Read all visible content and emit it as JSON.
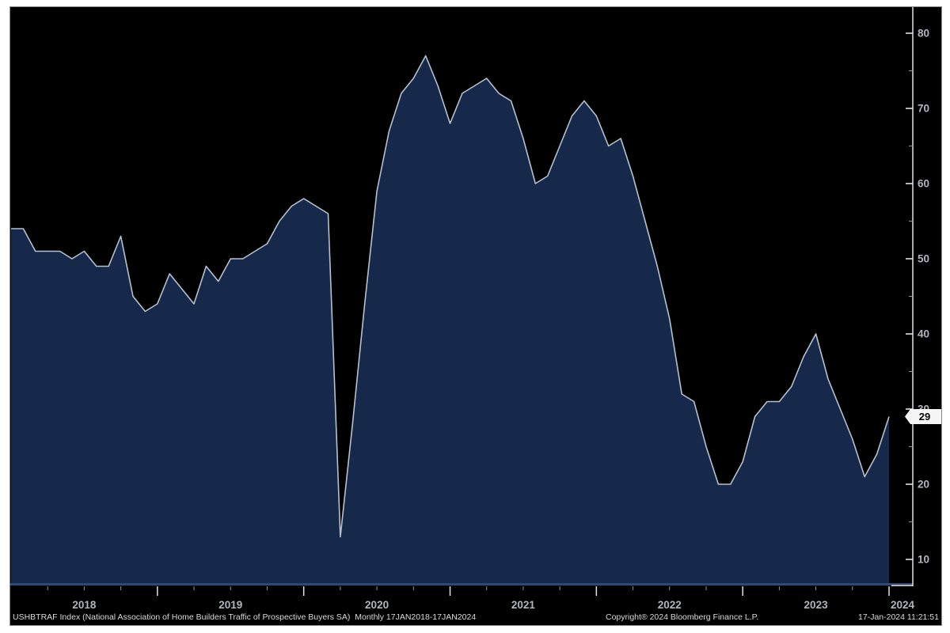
{
  "footer": {
    "left": "USHBTRAF Index (National Association of Home Builders Traffic of Prospective Buyers SA)  Monthly 17JAN2018-17JAN2024",
    "copyright": "Copyright® 2024 Bloomberg Finance L.P.",
    "datetime": "17-Jan-2024 11:21:51"
  },
  "y_axis": {
    "major_ticks": [
      10,
      20,
      30,
      40,
      50,
      60,
      70,
      80
    ],
    "minor_ticks": [
      15,
      25,
      35,
      45,
      55,
      65,
      75
    ],
    "last_value_badge": "29"
  },
  "x_axis": {
    "year_labels": [
      "2018",
      "2019",
      "2020",
      "2021",
      "2022",
      "2023",
      "2024"
    ]
  },
  "chart_data": {
    "type": "area",
    "title": "USHBTRAF Index (National Association of Home Builders Traffic of Prospective Buyers SA)",
    "frequency": "Monthly",
    "date_range": "17JAN2018-17JAN2024",
    "x_start": "2018-01",
    "x_end": "2024-01",
    "ylim": [
      6.5,
      83.5
    ],
    "grid": "off",
    "legend": "none",
    "axis_side": "right",
    "last_value": 29,
    "series": [
      {
        "name": "USHBTRAF Index",
        "values": [
          54,
          54,
          51,
          51,
          51,
          50,
          51,
          49,
          49,
          53,
          45,
          43,
          44,
          48,
          46,
          44,
          49,
          47,
          50,
          50,
          51,
          52,
          55,
          57,
          58,
          57,
          56,
          13,
          28,
          44,
          59,
          67,
          72,
          74,
          77,
          73,
          68,
          72,
          73,
          74,
          72,
          71,
          66,
          60,
          61,
          65,
          69,
          71,
          69,
          65,
          66,
          61,
          55,
          49,
          42,
          32,
          31,
          25,
          20,
          20,
          23,
          29,
          31,
          31,
          33,
          37,
          40,
          34,
          30,
          26,
          21,
          24,
          29
        ]
      }
    ],
    "colors": {
      "background": "#000000",
      "area_fill": "#16294a",
      "line": "#b7c1cc",
      "axis": "#e2e2e2",
      "minor_tick": "#8f959c",
      "tick_label": "#b0b6be",
      "baseline_blue": "#2b4a78",
      "badge_fill": "#f5f5f5",
      "badge_text": "#000000"
    }
  }
}
